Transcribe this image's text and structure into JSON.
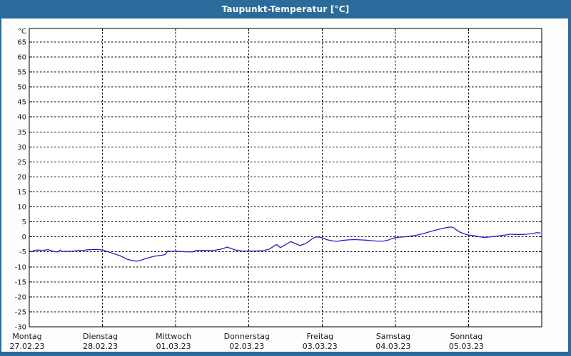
{
  "window": {
    "title": "Taupunkt-Temperatur [°C]"
  },
  "colors": {
    "titlebar": "#2b6b9c",
    "window_border": "#2b6b9c",
    "title_text": "#ffffff",
    "plot_background": "#ffffff",
    "plot_border": "#000000",
    "grid": "#000000",
    "axis_text": "#1a1a1a",
    "series_line": "#2222c8"
  },
  "chart_data": {
    "type": "line",
    "title": "Taupunkt-Temperatur [°C]",
    "ylabel": "°C",
    "y_unit_label": "°C",
    "ylim": [
      -30,
      69.5
    ],
    "yticks": [
      -30,
      -25,
      -20,
      -15,
      -10,
      -5,
      0,
      5,
      10,
      15,
      20,
      25,
      30,
      35,
      40,
      45,
      50,
      55,
      60,
      65
    ],
    "grid": "dashed",
    "legend_position": "none",
    "x_range_days": [
      0,
      7
    ],
    "x_days": [
      {
        "name": "Montag",
        "date": "27.02.23"
      },
      {
        "name": "Dienstag",
        "date": "28.02.23"
      },
      {
        "name": "Mittwoch",
        "date": "01.03.23"
      },
      {
        "name": "Donnerstag",
        "date": "02.03.23"
      },
      {
        "name": "Freitag",
        "date": "03.03.23"
      },
      {
        "name": "Samstag",
        "date": "04.03.23"
      },
      {
        "name": "Sonntag",
        "date": "05.03.23"
      }
    ],
    "series": [
      {
        "name": "taupunkt-temperatur",
        "color": "#2222c8",
        "points": [
          [
            0.0,
            -4.6
          ],
          [
            0.03,
            -5.0
          ],
          [
            0.07,
            -4.5
          ],
          [
            0.12,
            -4.4
          ],
          [
            0.17,
            -4.5
          ],
          [
            0.22,
            -4.4
          ],
          [
            0.26,
            -4.3
          ],
          [
            0.3,
            -4.6
          ],
          [
            0.36,
            -5.0
          ],
          [
            0.4,
            -5.0
          ],
          [
            0.42,
            -4.4
          ],
          [
            0.45,
            -4.9
          ],
          [
            0.5,
            -4.8
          ],
          [
            0.58,
            -4.8
          ],
          [
            0.66,
            -4.6
          ],
          [
            0.74,
            -4.5
          ],
          [
            0.8,
            -4.3
          ],
          [
            0.88,
            -4.2
          ],
          [
            0.94,
            -4.2
          ],
          [
            1.0,
            -4.4
          ],
          [
            1.08,
            -5.0
          ],
          [
            1.17,
            -5.7
          ],
          [
            1.26,
            -6.5
          ],
          [
            1.33,
            -7.4
          ],
          [
            1.4,
            -7.9
          ],
          [
            1.46,
            -8.1
          ],
          [
            1.52,
            -7.9
          ],
          [
            1.58,
            -7.3
          ],
          [
            1.64,
            -6.9
          ],
          [
            1.7,
            -6.5
          ],
          [
            1.76,
            -6.3
          ],
          [
            1.82,
            -6.1
          ],
          [
            1.86,
            -5.8
          ],
          [
            1.89,
            -4.7
          ],
          [
            1.95,
            -4.8
          ],
          [
            2.0,
            -4.8
          ],
          [
            2.08,
            -4.9
          ],
          [
            2.16,
            -5.0
          ],
          [
            2.24,
            -5.0
          ],
          [
            2.28,
            -4.5
          ],
          [
            2.36,
            -4.5
          ],
          [
            2.44,
            -4.5
          ],
          [
            2.52,
            -4.5
          ],
          [
            2.6,
            -4.2
          ],
          [
            2.66,
            -3.8
          ],
          [
            2.7,
            -3.4
          ],
          [
            2.76,
            -3.9
          ],
          [
            2.82,
            -4.4
          ],
          [
            2.9,
            -4.7
          ],
          [
            3.0,
            -4.7
          ],
          [
            3.1,
            -4.7
          ],
          [
            3.2,
            -4.6
          ],
          [
            3.28,
            -4.1
          ],
          [
            3.35,
            -2.9
          ],
          [
            3.38,
            -2.6
          ],
          [
            3.43,
            -3.6
          ],
          [
            3.5,
            -2.6
          ],
          [
            3.57,
            -1.6
          ],
          [
            3.63,
            -2.2
          ],
          [
            3.7,
            -2.9
          ],
          [
            3.78,
            -2.2
          ],
          [
            3.85,
            -0.9
          ],
          [
            3.91,
            0.0
          ],
          [
            3.96,
            -0.1
          ],
          [
            4.0,
            -0.3
          ],
          [
            4.06,
            -0.9
          ],
          [
            4.13,
            -1.3
          ],
          [
            4.2,
            -1.5
          ],
          [
            4.28,
            -1.2
          ],
          [
            4.36,
            -1.0
          ],
          [
            4.44,
            -0.9
          ],
          [
            4.52,
            -1.0
          ],
          [
            4.6,
            -1.1
          ],
          [
            4.68,
            -1.3
          ],
          [
            4.76,
            -1.4
          ],
          [
            4.84,
            -1.4
          ],
          [
            4.9,
            -1.1
          ],
          [
            4.95,
            -0.6
          ],
          [
            5.0,
            -0.3
          ],
          [
            5.06,
            -0.1
          ],
          [
            5.12,
            0.0
          ],
          [
            5.2,
            0.2
          ],
          [
            5.3,
            0.6
          ],
          [
            5.4,
            1.2
          ],
          [
            5.48,
            1.8
          ],
          [
            5.56,
            2.3
          ],
          [
            5.64,
            2.8
          ],
          [
            5.7,
            3.1
          ],
          [
            5.76,
            3.3
          ],
          [
            5.8,
            3.0
          ],
          [
            5.84,
            2.2
          ],
          [
            5.88,
            1.6
          ],
          [
            5.93,
            1.1
          ],
          [
            6.0,
            0.6
          ],
          [
            6.08,
            0.4
          ],
          [
            6.16,
            0.0
          ],
          [
            6.22,
            -0.2
          ],
          [
            6.3,
            0.0
          ],
          [
            6.4,
            0.3
          ],
          [
            6.5,
            0.6
          ],
          [
            6.57,
            0.9
          ],
          [
            6.64,
            0.8
          ],
          [
            6.72,
            0.8
          ],
          [
            6.8,
            0.9
          ],
          [
            6.88,
            1.1
          ],
          [
            6.93,
            1.4
          ],
          [
            6.98,
            1.3
          ]
        ]
      }
    ]
  }
}
